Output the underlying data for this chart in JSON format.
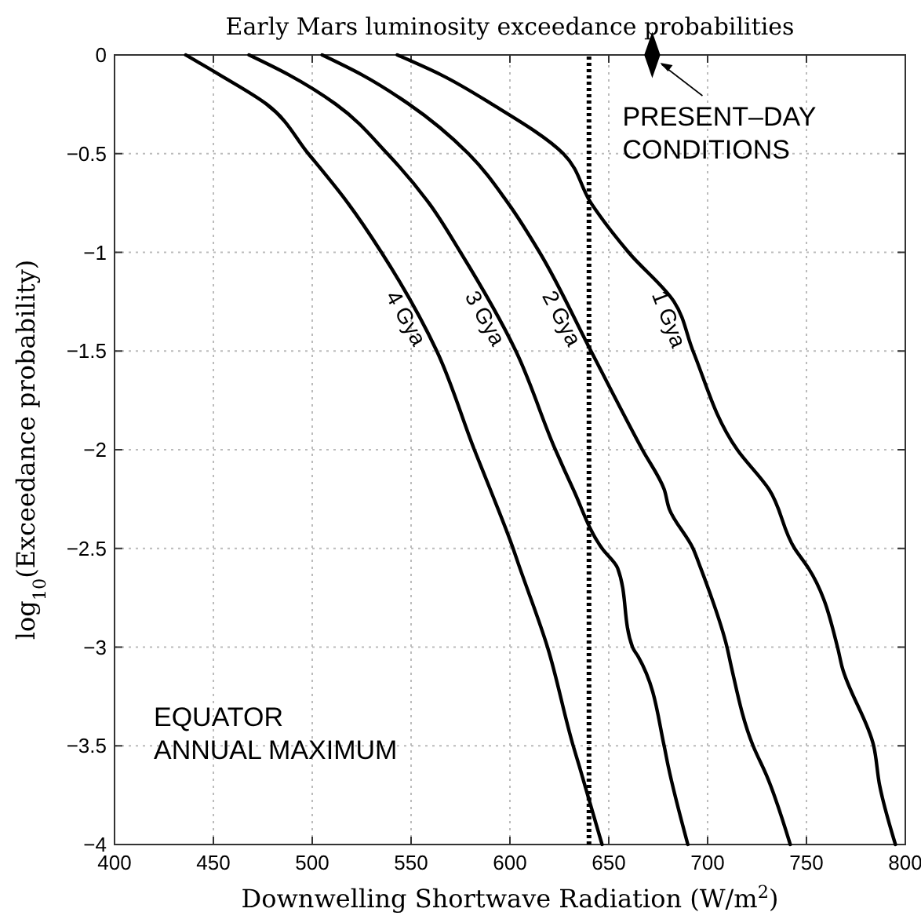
{
  "chart_data": {
    "type": "line",
    "title": "Early Mars luminosity exceedance probabilities",
    "xlabel": "Downwelling Shortwave Radiation (W/m$^{2}$)",
    "ylabel": "log$_{10}$(Exceedance probability)",
    "xlim": [
      400,
      800
    ],
    "ylim": [
      -4,
      0
    ],
    "xticks": [
      400,
      450,
      500,
      550,
      600,
      650,
      700,
      750,
      800
    ],
    "yticks": [
      -4,
      -3.5,
      -3,
      -2.5,
      -2,
      -1.5,
      -1,
      -0.5,
      0
    ],
    "grid": true,
    "line_style": "solid",
    "marker": "none",
    "series": [
      {
        "name": "4 Gya",
        "color": "#000000",
        "x": [
          436,
          453,
          477,
          498,
          518,
          535,
          563,
          582,
          590,
          601.6,
          604,
          619,
          632,
          635,
          646.6
        ],
        "values": [
          0,
          -0.1,
          -0.25,
          -0.5,
          -0.75,
          -1,
          -1.5,
          -2,
          -2.2,
          -2.5,
          -2.57,
          -3,
          -3.5,
          -3.6,
          -4
        ]
      },
      {
        "name": "3 Gya",
        "color": "#000000",
        "x": [
          468,
          488,
          512,
          538,
          559,
          575,
          603,
          623,
          632,
          646.6,
          654.5,
          662,
          665,
          678,
          680,
          690
        ],
        "values": [
          0,
          -0.1,
          -0.25,
          -0.5,
          -0.75,
          -1,
          -1.5,
          -2,
          -2.2,
          -2.5,
          -2.6,
          -3,
          -3.05,
          -3.5,
          -3.6,
          -4
        ]
      },
      {
        "name": "2 Gya",
        "color": "#000000",
        "x": [
          505,
          525,
          549,
          579,
          599,
          615,
          641,
          667,
          678,
          680.6,
          692.6,
          696.5,
          709.8,
          712,
          723,
          729.8,
          741.8
        ],
        "values": [
          0,
          -0.1,
          -0.25,
          -0.5,
          -0.75,
          -1,
          -1.5,
          -2,
          -2.2,
          -2.3,
          -2.5,
          -2.6,
          -3,
          -3.1,
          -3.5,
          -3.65,
          -4
        ]
      },
      {
        "name": "1 Gya",
        "color": "#000000",
        "x": [
          543,
          565,
          591,
          627,
          641,
          660,
          683,
          692.6,
          715,
          731,
          744,
          751,
          765.7,
          768,
          784,
          787,
          795
        ],
        "values": [
          0,
          -0.1,
          -0.25,
          -0.5,
          -0.75,
          -1,
          -1.25,
          -1.5,
          -2,
          -2.2,
          -2.5,
          -2.6,
          -3,
          -3.1,
          -3.5,
          -3.7,
          -4
        ]
      },
      {
        "type": "scatter",
        "marker": "diamond",
        "color": "#000000",
        "x": [
          672
        ],
        "values": [
          0
        ]
      }
    ],
    "ref_lines": [
      {
        "axis": "x",
        "value": 640,
        "color": "#000000",
        "line_style": "dotted"
      }
    ],
    "annotations": [
      {
        "text": "PRESENT–DAY\nCONDITIONS",
        "x": 672,
        "y": 0
      },
      "EQUATOR\nANNUAL MAXIMUM"
    ]
  }
}
